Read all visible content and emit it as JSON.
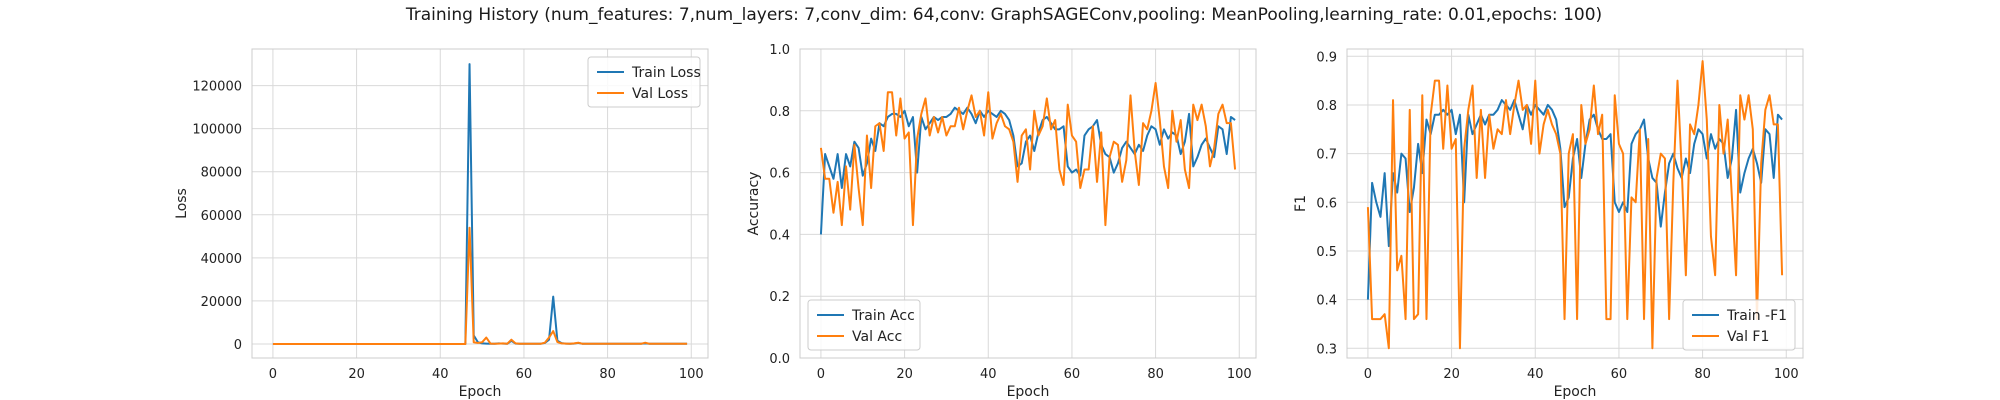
{
  "figure": {
    "title": "Training History (num_features: 7,num_layers: 7,conv_dim: 64,conv: GraphSAGEConv,pooling: MeanPooling,learning_rate: 0.01,epochs: 100)"
  },
  "colors": {
    "train": "#1f77b4",
    "val": "#ff7f0e",
    "grid": "#d9d9d9",
    "spine": "#cccccc"
  },
  "chart_data": [
    {
      "type": "line",
      "title": "",
      "xlabel": "Epoch",
      "ylabel": "Loss",
      "xlim": [
        -5,
        104
      ],
      "ylim": [
        -6500,
        137000
      ],
      "xticks": [
        0,
        20,
        40,
        60,
        80,
        100
      ],
      "yticks": [
        0,
        20000,
        40000,
        60000,
        80000,
        100000,
        120000
      ],
      "legend": "top-right",
      "grid": true,
      "x": [
        0,
        1,
        2,
        3,
        4,
        5,
        6,
        7,
        8,
        9,
        10,
        11,
        12,
        13,
        14,
        15,
        16,
        17,
        18,
        19,
        20,
        21,
        22,
        23,
        24,
        25,
        26,
        27,
        28,
        29,
        30,
        31,
        32,
        33,
        34,
        35,
        36,
        37,
        38,
        39,
        40,
        41,
        42,
        43,
        44,
        45,
        46,
        47,
        48,
        49,
        50,
        51,
        52,
        53,
        54,
        55,
        56,
        57,
        58,
        59,
        60,
        61,
        62,
        63,
        64,
        65,
        66,
        67,
        68,
        69,
        70,
        71,
        72,
        73,
        74,
        75,
        76,
        77,
        78,
        79,
        80,
        81,
        82,
        83,
        84,
        85,
        86,
        87,
        88,
        89,
        90,
        91,
        92,
        93,
        94,
        95,
        96,
        97,
        98,
        99
      ],
      "series": [
        {
          "name": "Train Loss",
          "color_key": "train",
          "values": [
            0,
            0,
            0,
            0,
            0,
            0,
            0,
            0,
            0,
            0,
            0,
            0,
            0,
            0,
            0,
            0,
            0,
            0,
            0,
            0,
            0,
            0,
            0,
            0,
            0,
            0,
            0,
            0,
            0,
            0,
            0,
            0,
            0,
            0,
            0,
            0,
            0,
            0,
            0,
            0,
            0,
            0,
            0,
            0,
            0,
            0,
            0,
            130000,
            4000,
            800,
            300,
            200,
            100,
            100,
            300,
            200,
            100,
            1500,
            200,
            100,
            100,
            100,
            100,
            100,
            100,
            500,
            2000,
            22000,
            1500,
            400,
            200,
            100,
            200,
            500,
            100,
            100,
            100,
            100,
            100,
            100,
            100,
            100,
            100,
            100,
            100,
            100,
            100,
            100,
            100,
            300,
            100,
            100,
            100,
            100,
            100,
            100,
            100,
            100,
            100,
            100
          ]
        },
        {
          "name": "Val Loss",
          "color_key": "val",
          "values": [
            0,
            0,
            0,
            0,
            0,
            0,
            0,
            0,
            0,
            0,
            0,
            0,
            0,
            0,
            0,
            0,
            0,
            0,
            0,
            0,
            0,
            0,
            0,
            0,
            0,
            0,
            0,
            0,
            0,
            0,
            0,
            0,
            0,
            0,
            0,
            0,
            0,
            0,
            0,
            0,
            0,
            0,
            0,
            0,
            0,
            0,
            0,
            54000,
            800,
            500,
            800,
            3000,
            200,
            100,
            200,
            300,
            100,
            2000,
            300,
            100,
            100,
            100,
            100,
            100,
            100,
            600,
            3000,
            6000,
            900,
            300,
            200,
            100,
            300,
            600,
            100,
            100,
            100,
            100,
            100,
            100,
            100,
            100,
            100,
            100,
            100,
            100,
            100,
            100,
            100,
            600,
            100,
            100,
            100,
            100,
            100,
            100,
            100,
            100,
            100,
            100
          ]
        }
      ]
    },
    {
      "type": "line",
      "title": "",
      "xlabel": "Epoch",
      "ylabel": "Accuracy",
      "xlim": [
        -5,
        104
      ],
      "ylim": [
        0.0,
        1.0
      ],
      "xticks": [
        0,
        20,
        40,
        60,
        80,
        100
      ],
      "yticks": [
        0.0,
        0.2,
        0.4,
        0.6,
        0.8,
        1.0
      ],
      "legend": "bottom-left",
      "grid": true,
      "x": [
        0,
        1,
        2,
        3,
        4,
        5,
        6,
        7,
        8,
        9,
        10,
        11,
        12,
        13,
        14,
        15,
        16,
        17,
        18,
        19,
        20,
        21,
        22,
        23,
        24,
        25,
        26,
        27,
        28,
        29,
        30,
        31,
        32,
        33,
        34,
        35,
        36,
        37,
        38,
        39,
        40,
        41,
        42,
        43,
        44,
        45,
        46,
        47,
        48,
        49,
        50,
        51,
        52,
        53,
        54,
        55,
        56,
        57,
        58,
        59,
        60,
        61,
        62,
        63,
        64,
        65,
        66,
        67,
        68,
        69,
        70,
        71,
        72,
        73,
        74,
        75,
        76,
        77,
        78,
        79,
        80,
        81,
        82,
        83,
        84,
        85,
        86,
        87,
        88,
        89,
        90,
        91,
        92,
        93,
        94,
        95,
        96,
        97,
        98,
        99
      ],
      "series": [
        {
          "name": "Train Acc",
          "color_key": "train",
          "values": [
            0.4,
            0.66,
            0.62,
            0.58,
            0.66,
            0.55,
            0.66,
            0.62,
            0.7,
            0.68,
            0.59,
            0.63,
            0.71,
            0.67,
            0.76,
            0.75,
            0.78,
            0.79,
            0.79,
            0.78,
            0.8,
            0.75,
            0.78,
            0.6,
            0.78,
            0.74,
            0.76,
            0.78,
            0.77,
            0.78,
            0.78,
            0.79,
            0.81,
            0.8,
            0.79,
            0.81,
            0.79,
            0.76,
            0.8,
            0.78,
            0.8,
            0.79,
            0.78,
            0.8,
            0.79,
            0.77,
            0.72,
            0.62,
            0.63,
            0.7,
            0.72,
            0.67,
            0.73,
            0.77,
            0.78,
            0.76,
            0.74,
            0.74,
            0.75,
            0.62,
            0.6,
            0.61,
            0.59,
            0.72,
            0.74,
            0.75,
            0.77,
            0.69,
            0.66,
            0.65,
            0.6,
            0.63,
            0.68,
            0.7,
            0.68,
            0.66,
            0.69,
            0.67,
            0.72,
            0.75,
            0.74,
            0.69,
            0.74,
            0.71,
            0.73,
            0.72,
            0.66,
            0.7,
            0.79,
            0.62,
            0.65,
            0.69,
            0.71,
            0.68,
            0.65,
            0.75,
            0.74,
            0.66,
            0.78,
            0.77
          ]
        },
        {
          "name": "Val Acc",
          "color_key": "val",
          "values": [
            0.68,
            0.58,
            0.58,
            0.47,
            0.57,
            0.43,
            0.62,
            0.48,
            0.69,
            0.55,
            0.43,
            0.72,
            0.55,
            0.75,
            0.76,
            0.67,
            0.86,
            0.86,
            0.72,
            0.84,
            0.71,
            0.73,
            0.43,
            0.71,
            0.79,
            0.84,
            0.72,
            0.78,
            0.73,
            0.78,
            0.72,
            0.75,
            0.75,
            0.81,
            0.74,
            0.8,
            0.85,
            0.78,
            0.8,
            0.72,
            0.86,
            0.71,
            0.76,
            0.79,
            0.75,
            0.74,
            0.7,
            0.57,
            0.72,
            0.74,
            0.61,
            0.8,
            0.72,
            0.75,
            0.84,
            0.74,
            0.77,
            0.61,
            0.56,
            0.82,
            0.72,
            0.7,
            0.55,
            0.61,
            0.61,
            0.75,
            0.57,
            0.73,
            0.43,
            0.65,
            0.7,
            0.69,
            0.57,
            0.64,
            0.85,
            0.67,
            0.56,
            0.76,
            0.74,
            0.8,
            0.89,
            0.77,
            0.62,
            0.55,
            0.8,
            0.7,
            0.77,
            0.61,
            0.55,
            0.82,
            0.77,
            0.82,
            0.75,
            0.62,
            0.68,
            0.79,
            0.82,
            0.76,
            0.76,
            0.61
          ]
        }
      ]
    },
    {
      "type": "line",
      "title": "",
      "xlabel": "Epoch",
      "ylabel": "F1",
      "xlim": [
        -5,
        104
      ],
      "ylim": [
        0.28,
        0.915
      ],
      "xticks": [
        0,
        20,
        40,
        60,
        80,
        100
      ],
      "yticks": [
        0.3,
        0.4,
        0.5,
        0.6,
        0.7,
        0.8,
        0.9
      ],
      "legend": "bottom-right",
      "grid": true,
      "x": [
        0,
        1,
        2,
        3,
        4,
        5,
        6,
        7,
        8,
        9,
        10,
        11,
        12,
        13,
        14,
        15,
        16,
        17,
        18,
        19,
        20,
        21,
        22,
        23,
        24,
        25,
        26,
        27,
        28,
        29,
        30,
        31,
        32,
        33,
        34,
        35,
        36,
        37,
        38,
        39,
        40,
        41,
        42,
        43,
        44,
        45,
        46,
        47,
        48,
        49,
        50,
        51,
        52,
        53,
        54,
        55,
        56,
        57,
        58,
        59,
        60,
        61,
        62,
        63,
        64,
        65,
        66,
        67,
        68,
        69,
        70,
        71,
        72,
        73,
        74,
        75,
        76,
        77,
        78,
        79,
        80,
        81,
        82,
        83,
        84,
        85,
        86,
        87,
        88,
        89,
        90,
        91,
        92,
        93,
        94,
        95,
        96,
        97,
        98,
        99
      ],
      "series": [
        {
          "name": "Train -F1",
          "color_key": "train",
          "values": [
            0.4,
            0.64,
            0.6,
            0.57,
            0.66,
            0.51,
            0.66,
            0.62,
            0.7,
            0.69,
            0.58,
            0.63,
            0.72,
            0.66,
            0.77,
            0.74,
            0.78,
            0.78,
            0.79,
            0.78,
            0.79,
            0.74,
            0.78,
            0.6,
            0.78,
            0.74,
            0.76,
            0.78,
            0.76,
            0.78,
            0.78,
            0.79,
            0.81,
            0.8,
            0.79,
            0.81,
            0.78,
            0.75,
            0.8,
            0.78,
            0.8,
            0.79,
            0.78,
            0.8,
            0.79,
            0.77,
            0.71,
            0.59,
            0.61,
            0.69,
            0.73,
            0.65,
            0.72,
            0.77,
            0.78,
            0.75,
            0.73,
            0.73,
            0.74,
            0.6,
            0.58,
            0.6,
            0.58,
            0.72,
            0.74,
            0.75,
            0.77,
            0.69,
            0.65,
            0.64,
            0.55,
            0.62,
            0.68,
            0.7,
            0.67,
            0.65,
            0.69,
            0.66,
            0.72,
            0.75,
            0.74,
            0.69,
            0.74,
            0.71,
            0.73,
            0.72,
            0.65,
            0.69,
            0.79,
            0.62,
            0.66,
            0.69,
            0.71,
            0.68,
            0.64,
            0.75,
            0.74,
            0.65,
            0.78,
            0.77
          ]
        },
        {
          "name": "Val F1",
          "color_key": "val",
          "values": [
            0.59,
            0.36,
            0.36,
            0.36,
            0.37,
            0.3,
            0.81,
            0.46,
            0.49,
            0.36,
            0.79,
            0.36,
            0.37,
            0.82,
            0.36,
            0.78,
            0.85,
            0.85,
            0.71,
            0.84,
            0.71,
            0.73,
            0.3,
            0.71,
            0.79,
            0.84,
            0.65,
            0.79,
            0.65,
            0.78,
            0.71,
            0.75,
            0.74,
            0.81,
            0.74,
            0.8,
            0.85,
            0.79,
            0.8,
            0.72,
            0.85,
            0.7,
            0.76,
            0.79,
            0.76,
            0.74,
            0.7,
            0.36,
            0.7,
            0.74,
            0.36,
            0.8,
            0.72,
            0.75,
            0.84,
            0.74,
            0.78,
            0.36,
            0.36,
            0.82,
            0.72,
            0.7,
            0.36,
            0.61,
            0.6,
            0.75,
            0.36,
            0.73,
            0.3,
            0.65,
            0.7,
            0.69,
            0.36,
            0.64,
            0.85,
            0.67,
            0.45,
            0.76,
            0.74,
            0.8,
            0.89,
            0.77,
            0.53,
            0.45,
            0.8,
            0.7,
            0.77,
            0.61,
            0.45,
            0.82,
            0.77,
            0.82,
            0.75,
            0.36,
            0.68,
            0.79,
            0.82,
            0.76,
            0.76,
            0.45
          ]
        }
      ]
    }
  ]
}
